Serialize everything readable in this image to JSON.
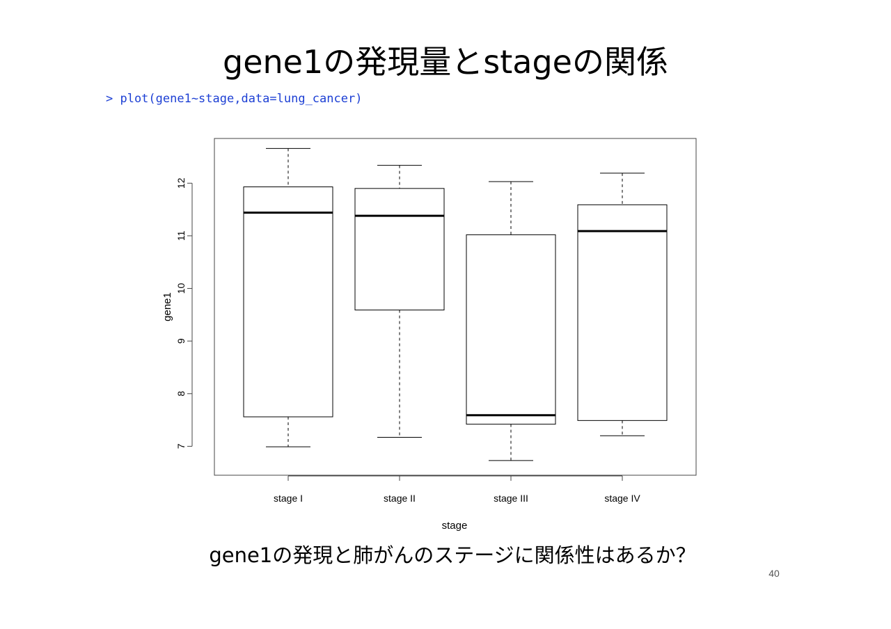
{
  "slide": {
    "title": "gene1の発現量とstageの関係",
    "code": "> plot(gene1~stage,data=lung_cancer)",
    "caption": "gene1の発現と肺がんのステージに関係性はあるか？",
    "page_number": "40"
  },
  "chart_data": {
    "type": "boxplot",
    "xlabel": "stage",
    "ylabel": "gene1",
    "ylim": [
      6.45,
      12.85
    ],
    "yticks": [
      7,
      8,
      9,
      10,
      11,
      12
    ],
    "categories": [
      "stage I",
      "stage II",
      "stage III",
      "stage IV"
    ],
    "boxes": [
      {
        "min": 6.99,
        "q1": 7.56,
        "median": 11.44,
        "q3": 11.93,
        "max": 12.66
      },
      {
        "min": 7.17,
        "q1": 9.59,
        "median": 11.38,
        "q3": 11.9,
        "max": 12.34
      },
      {
        "min": 6.73,
        "q1": 7.42,
        "median": 7.59,
        "q3": 11.02,
        "max": 12.03
      },
      {
        "min": 7.2,
        "q1": 7.49,
        "median": 11.09,
        "q3": 11.59,
        "max": 12.19
      }
    ],
    "grid": false,
    "colors": {
      "box_fill": "#ffffff",
      "stroke": "#000000"
    }
  }
}
